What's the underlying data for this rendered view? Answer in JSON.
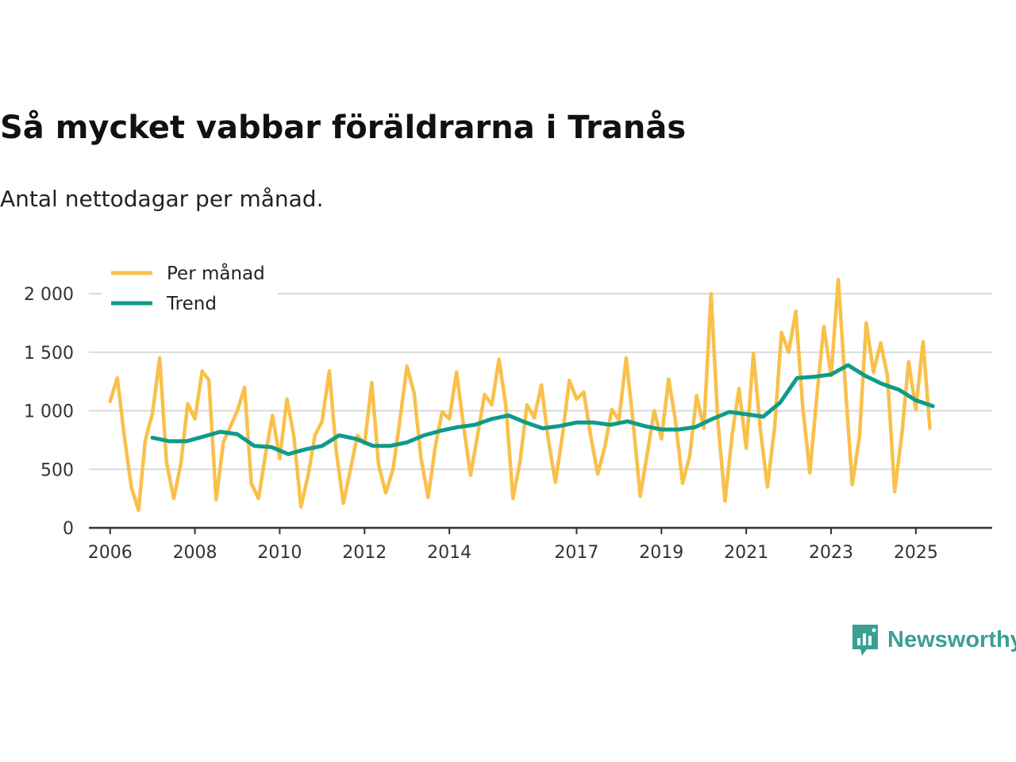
{
  "chart_data": {
    "type": "line",
    "title": "Så mycket vabbar föräldrarna i Tranås",
    "subtitle": "Antal nettodagar per månad.",
    "xlabel": "",
    "ylabel": "",
    "ylim": [
      0,
      2000
    ],
    "y_ticks": [
      0,
      500,
      1000,
      1500,
      2000
    ],
    "y_tick_labels": [
      "0",
      "500",
      "1 000",
      "1 500",
      "2 000"
    ],
    "x_range": [
      2005.5,
      2026.8
    ],
    "x_ticks": [
      2006,
      2008,
      2010,
      2012,
      2014,
      2017,
      2019,
      2021,
      2023,
      2025
    ],
    "x_tick_labels": [
      "2006",
      "2008",
      "2010",
      "2012",
      "2014",
      "2017",
      "2019",
      "2021",
      "2023",
      "2025"
    ],
    "grid": true,
    "legend_position": "top-left",
    "series": [
      {
        "name": "Per månad",
        "color": "#f9c04a",
        "x": [
          2006.0,
          2006.17,
          2006.33,
          2006.5,
          2006.67,
          2006.83,
          2007.0,
          2007.17,
          2007.33,
          2007.5,
          2007.67,
          2007.83,
          2008.0,
          2008.17,
          2008.33,
          2008.5,
          2008.67,
          2008.83,
          2009.0,
          2009.17,
          2009.33,
          2009.5,
          2009.67,
          2009.83,
          2010.0,
          2010.17,
          2010.33,
          2010.5,
          2010.67,
          2010.83,
          2011.0,
          2011.17,
          2011.33,
          2011.5,
          2011.67,
          2011.83,
          2012.0,
          2012.17,
          2012.33,
          2012.5,
          2012.67,
          2012.83,
          2013.0,
          2013.17,
          2013.33,
          2013.5,
          2013.67,
          2013.83,
          2014.0,
          2014.17,
          2014.33,
          2014.5,
          2014.67,
          2014.83,
          2015.0,
          2015.17,
          2015.33,
          2015.5,
          2015.67,
          2015.83,
          2016.0,
          2016.17,
          2016.33,
          2016.5,
          2016.67,
          2016.83,
          2017.0,
          2017.17,
          2017.33,
          2017.5,
          2017.67,
          2017.83,
          2018.0,
          2018.17,
          2018.33,
          2018.5,
          2018.67,
          2018.83,
          2019.0,
          2019.17,
          2019.33,
          2019.5,
          2019.67,
          2019.83,
          2020.0,
          2020.17,
          2020.33,
          2020.5,
          2020.67,
          2020.83,
          2021.0,
          2021.17,
          2021.33,
          2021.5,
          2021.67,
          2021.83,
          2022.0,
          2022.17,
          2022.33,
          2022.5,
          2022.67,
          2022.83,
          2023.0,
          2023.17,
          2023.33,
          2023.5,
          2023.67,
          2023.83,
          2024.0,
          2024.17,
          2024.33,
          2024.5,
          2024.67,
          2024.83,
          2025.0,
          2025.17,
          2025.33
        ],
        "values": [
          1080,
          1280,
          800,
          350,
          150,
          750,
          980,
          1450,
          560,
          250,
          550,
          1060,
          930,
          1340,
          1260,
          240,
          730,
          860,
          1000,
          1200,
          380,
          250,
          640,
          960,
          590,
          1100,
          790,
          180,
          450,
          790,
          910,
          1340,
          660,
          210,
          500,
          790,
          720,
          1240,
          540,
          300,
          500,
          910,
          1380,
          1150,
          600,
          260,
          700,
          990,
          930,
          1330,
          880,
          450,
          800,
          1140,
          1050,
          1440,
          1050,
          250,
          580,
          1050,
          940,
          1220,
          760,
          390,
          800,
          1260,
          1100,
          1160,
          790,
          460,
          700,
          1010,
          920,
          1450,
          910,
          270,
          640,
          1000,
          760,
          1270,
          920,
          380,
          620,
          1130,
          850,
          2000,
          920,
          230,
          800,
          1190,
          680,
          1490,
          850,
          350,
          860,
          1670,
          1500,
          1850,
          1040,
          470,
          1140,
          1720,
          1300,
          2120,
          1250,
          370,
          780,
          1750,
          1330,
          1580,
          1300,
          310,
          800,
          1420,
          1010,
          1590,
          850
        ]
      },
      {
        "name": "Trend",
        "color": "#0e9b8a",
        "x": [
          2007.0,
          2007.4,
          2007.8,
          2008.2,
          2008.6,
          2009.0,
          2009.4,
          2009.8,
          2010.2,
          2010.6,
          2011.0,
          2011.4,
          2011.8,
          2012.2,
          2012.6,
          2013.0,
          2013.4,
          2013.8,
          2014.2,
          2014.6,
          2015.0,
          2015.4,
          2015.8,
          2016.2,
          2016.6,
          2017.0,
          2017.4,
          2017.8,
          2018.2,
          2018.6,
          2019.0,
          2019.4,
          2019.8,
          2020.2,
          2020.6,
          2021.0,
          2021.4,
          2021.8,
          2022.2,
          2022.6,
          2023.0,
          2023.4,
          2023.8,
          2024.2,
          2024.6,
          2025.0,
          2025.4
        ],
        "values": [
          770,
          740,
          740,
          780,
          820,
          800,
          700,
          690,
          630,
          670,
          700,
          790,
          760,
          700,
          700,
          730,
          790,
          830,
          860,
          880,
          930,
          960,
          900,
          850,
          870,
          900,
          900,
          880,
          910,
          870,
          840,
          840,
          860,
          930,
          990,
          970,
          950,
          1070,
          1280,
          1290,
          1310,
          1390,
          1300,
          1230,
          1180,
          1090,
          1040
        ]
      }
    ]
  },
  "branding": {
    "name": "Newsworthy",
    "logo_icon": "newsworthy-chart-icon",
    "color": "#3aa093"
  }
}
